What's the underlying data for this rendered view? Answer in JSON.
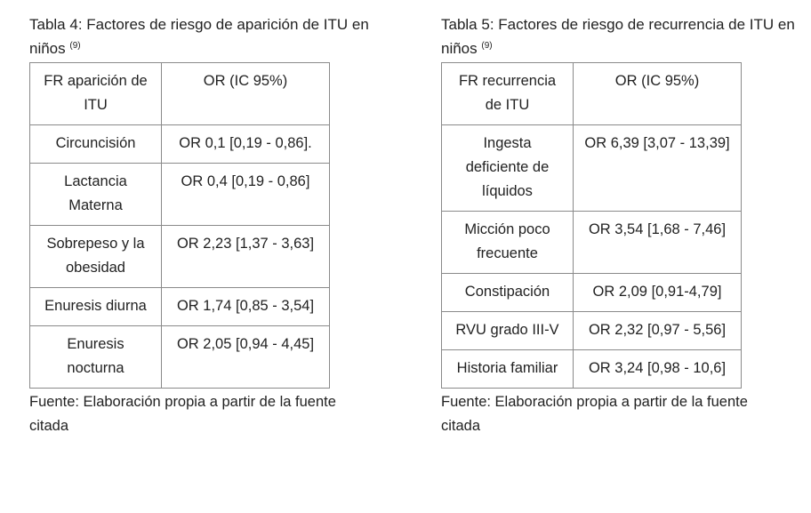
{
  "left": {
    "caption": "Tabla 4: Factores de riesgo de aparición de ITU en niños",
    "caption_ref": "(9)",
    "headers": [
      "FR aparición de ITU",
      "OR (IC 95%)"
    ],
    "rows": [
      [
        "Circuncisión",
        "OR 0,1 [0,19 - 0,86]."
      ],
      [
        "Lactancia Materna",
        "OR 0,4 [0,19 - 0,86]"
      ],
      [
        "Sobrepeso y la obesidad",
        "OR 2,23 [1,37 - 3,63]"
      ],
      [
        "Enuresis diurna",
        "OR 1,74 [0,85 - 3,54]"
      ],
      [
        "Enuresis nocturna",
        "OR 2,05 [0,94 - 4,45]"
      ]
    ],
    "source": "Fuente: Elaboración propia a partir de la fuente citada"
  },
  "right": {
    "caption": "Tabla 5: Factores de riesgo de recurrencia de ITU en niños",
    "caption_ref": "(9)",
    "headers": [
      "FR recurrencia de ITU",
      "OR (IC 95%)"
    ],
    "rows": [
      [
        "Ingesta deficiente de líquidos",
        "OR 6,39 [3,07 - 13,39]"
      ],
      [
        "Micción poco frecuente",
        "OR 3,54 [1,68 - 7,46]"
      ],
      [
        "Constipación",
        "OR 2,09 [0,91-4,79]"
      ],
      [
        "RVU grado III-V",
        "OR 2,32 [0,97 - 5,56]"
      ],
      [
        "Historia familiar",
        "OR 3,24 [0,98 - 10,6]"
      ]
    ],
    "source": "Fuente: Elaboración propia a partir de la fuente citada"
  }
}
